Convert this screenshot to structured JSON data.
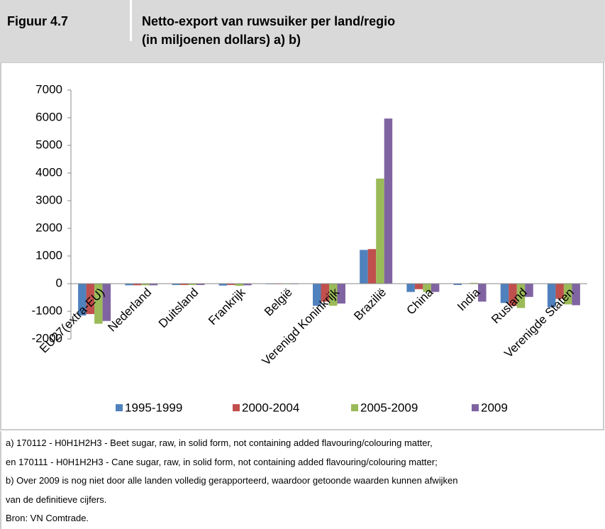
{
  "header": {
    "label": "Figuur 4.7",
    "title_lines": [
      "Netto-export van ruwsuiker per land/regio",
      "(in miljoenen dollars) a) b)"
    ]
  },
  "chart_data": {
    "type": "bar",
    "categories": [
      "EU27(extra-EU)",
      "Nederland",
      "Duitsland",
      "Frankrijk",
      "België",
      "Verenigd Koninkrijk",
      "Brazilië",
      "China",
      "India",
      "Rusland",
      "Verenigde Staten"
    ],
    "series": [
      {
        "name": "1995-1999",
        "color": "#4f81bd",
        "values": [
          -1150,
          -60,
          -50,
          -70,
          -20,
          -800,
          1220,
          -300,
          -50,
          -700,
          -850
        ]
      },
      {
        "name": "2000-2004",
        "color": "#c0504d",
        "values": [
          -1100,
          -60,
          -50,
          -50,
          -20,
          -650,
          1250,
          -200,
          10,
          -800,
          -550
        ]
      },
      {
        "name": "2005-2009",
        "color": "#9bbb59",
        "values": [
          -1450,
          -60,
          -50,
          -80,
          -20,
          -800,
          3800,
          -300,
          30,
          -880,
          -750
        ]
      },
      {
        "name": "2009",
        "color": "#8064a2",
        "values": [
          -1350,
          -60,
          -50,
          -60,
          -20,
          -720,
          5970,
          -300,
          -650,
          -480,
          -780
        ]
      }
    ],
    "ylim": [
      -2000,
      7000
    ],
    "yticks": [
      -2000,
      -1000,
      0,
      1000,
      2000,
      3000,
      4000,
      5000,
      6000,
      7000
    ]
  },
  "notes": [
    "a) 170112 - H0H1H2H3 - Beet sugar, raw, in solid form, not containing added flavouring/colouring matter,",
    "en 170111 - H0H1H2H3 - Cane sugar, raw, in solid form, not containing added flavouring/colouring matter;",
    "b) Over 2009 is nog niet door alle landen volledig gerapporteerd, waardoor getoonde waarden kunnen afwijken",
    "van de definitieve cijfers.",
    "Bron: VN Comtrade."
  ]
}
